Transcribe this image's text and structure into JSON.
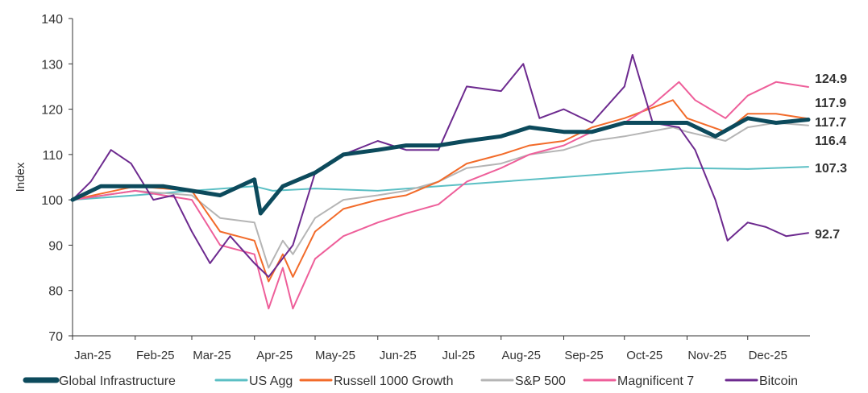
{
  "chart_data": {
    "type": "line",
    "title": "",
    "xlabel": "",
    "ylabel": "Index",
    "ylim": [
      70,
      140
    ],
    "yticks": [
      70,
      80,
      90,
      100,
      110,
      120,
      130,
      140
    ],
    "xlim": [
      "2025-01-01",
      "2025-12-31"
    ],
    "xticks": [
      {
        "date": "2025-01-01",
        "label": "Jan-25"
      },
      {
        "date": "2025-02-01",
        "label": "Feb-25"
      },
      {
        "date": "2025-03-01",
        "label": "Mar-25"
      },
      {
        "date": "2025-04-01",
        "label": "Apr-25"
      },
      {
        "date": "2025-05-01",
        "label": "May-25"
      },
      {
        "date": "2025-06-01",
        "label": "Jun-25"
      },
      {
        "date": "2025-07-01",
        "label": "Jul-25"
      },
      {
        "date": "2025-08-01",
        "label": "Aug-25"
      },
      {
        "date": "2025-09-01",
        "label": "Sep-25"
      },
      {
        "date": "2025-10-01",
        "label": "Oct-25"
      },
      {
        "date": "2025-11-01",
        "label": "Nov-25"
      },
      {
        "date": "2025-12-01",
        "label": "Dec-25"
      }
    ],
    "grid": false,
    "legend_placement": "bottom",
    "series": [
      {
        "name": "US Agg",
        "color": "#5bbfc4",
        "end_label": "107.3",
        "points": [
          [
            "2025-01-01",
            100
          ],
          [
            "2025-02-01",
            101
          ],
          [
            "2025-03-01",
            102
          ],
          [
            "2025-04-01",
            103
          ],
          [
            "2025-04-10",
            102
          ],
          [
            "2025-05-01",
            102.5
          ],
          [
            "2025-06-01",
            102
          ],
          [
            "2025-07-01",
            103
          ],
          [
            "2025-08-01",
            104
          ],
          [
            "2025-09-01",
            105
          ],
          [
            "2025-10-01",
            106
          ],
          [
            "2025-11-01",
            107
          ],
          [
            "2025-12-01",
            106.8
          ],
          [
            "2025-12-31",
            107.3
          ]
        ]
      },
      {
        "name": "S&P 500",
        "color": "#b5b5b5",
        "end_label": "116.4",
        "points": [
          [
            "2025-01-01",
            100
          ],
          [
            "2025-02-01",
            102
          ],
          [
            "2025-03-01",
            101
          ],
          [
            "2025-03-15",
            96
          ],
          [
            "2025-04-01",
            95
          ],
          [
            "2025-04-08",
            85
          ],
          [
            "2025-04-15",
            91
          ],
          [
            "2025-04-20",
            88
          ],
          [
            "2025-05-01",
            96
          ],
          [
            "2025-05-15",
            100
          ],
          [
            "2025-06-01",
            101
          ],
          [
            "2025-06-15",
            102
          ],
          [
            "2025-07-01",
            104
          ],
          [
            "2025-07-15",
            107
          ],
          [
            "2025-08-01",
            108
          ],
          [
            "2025-08-15",
            110
          ],
          [
            "2025-09-01",
            111
          ],
          [
            "2025-09-15",
            113
          ],
          [
            "2025-10-01",
            114
          ],
          [
            "2025-10-25",
            116
          ],
          [
            "2025-11-01",
            115
          ],
          [
            "2025-11-20",
            113
          ],
          [
            "2025-12-01",
            116
          ],
          [
            "2025-12-15",
            117
          ],
          [
            "2025-12-31",
            116.4
          ]
        ]
      },
      {
        "name": "Russell 1000 Growth",
        "color": "#f26b2a",
        "end_label": "117.9",
        "points": [
          [
            "2025-01-01",
            100
          ],
          [
            "2025-02-01",
            103
          ],
          [
            "2025-03-01",
            102
          ],
          [
            "2025-03-15",
            93
          ],
          [
            "2025-04-01",
            91
          ],
          [
            "2025-04-08",
            82
          ],
          [
            "2025-04-15",
            88
          ],
          [
            "2025-04-20",
            83
          ],
          [
            "2025-05-01",
            93
          ],
          [
            "2025-05-15",
            98
          ],
          [
            "2025-06-01",
            100
          ],
          [
            "2025-06-15",
            101
          ],
          [
            "2025-07-01",
            104
          ],
          [
            "2025-07-15",
            108
          ],
          [
            "2025-08-01",
            110
          ],
          [
            "2025-08-15",
            112
          ],
          [
            "2025-09-01",
            113
          ],
          [
            "2025-09-15",
            116
          ],
          [
            "2025-10-01",
            118
          ],
          [
            "2025-10-25",
            122
          ],
          [
            "2025-11-01",
            118
          ],
          [
            "2025-11-20",
            115
          ],
          [
            "2025-12-01",
            119
          ],
          [
            "2025-12-15",
            119
          ],
          [
            "2025-12-31",
            117.9
          ]
        ]
      },
      {
        "name": "Magnificent 7",
        "color": "#ee5f9a",
        "end_label": "124.9",
        "points": [
          [
            "2025-01-01",
            100
          ],
          [
            "2025-02-01",
            102
          ],
          [
            "2025-03-01",
            100
          ],
          [
            "2025-03-15",
            90
          ],
          [
            "2025-04-01",
            88
          ],
          [
            "2025-04-08",
            76
          ],
          [
            "2025-04-15",
            85
          ],
          [
            "2025-04-20",
            76
          ],
          [
            "2025-05-01",
            87
          ],
          [
            "2025-05-15",
            92
          ],
          [
            "2025-06-01",
            95
          ],
          [
            "2025-06-15",
            97
          ],
          [
            "2025-07-01",
            99
          ],
          [
            "2025-07-15",
            104
          ],
          [
            "2025-08-01",
            107
          ],
          [
            "2025-08-15",
            110
          ],
          [
            "2025-09-01",
            112
          ],
          [
            "2025-09-15",
            115
          ],
          [
            "2025-10-01",
            117
          ],
          [
            "2025-10-15",
            121
          ],
          [
            "2025-10-28",
            126
          ],
          [
            "2025-11-05",
            122
          ],
          [
            "2025-11-20",
            118
          ],
          [
            "2025-12-01",
            123
          ],
          [
            "2025-12-15",
            126
          ],
          [
            "2025-12-31",
            124.9
          ]
        ]
      },
      {
        "name": "Bitcoin",
        "color": "#6d2a8f",
        "end_label": "92.7",
        "points": [
          [
            "2025-01-01",
            100
          ],
          [
            "2025-01-10",
            104
          ],
          [
            "2025-01-20",
            111
          ],
          [
            "2025-01-30",
            108
          ],
          [
            "2025-02-10",
            100
          ],
          [
            "2025-02-20",
            101
          ],
          [
            "2025-03-01",
            93
          ],
          [
            "2025-03-10",
            86
          ],
          [
            "2025-03-20",
            92
          ],
          [
            "2025-04-01",
            86
          ],
          [
            "2025-04-08",
            83
          ],
          [
            "2025-04-20",
            90
          ],
          [
            "2025-05-01",
            106
          ],
          [
            "2025-05-15",
            110
          ],
          [
            "2025-06-01",
            113
          ],
          [
            "2025-06-15",
            111
          ],
          [
            "2025-07-01",
            111
          ],
          [
            "2025-07-15",
            125
          ],
          [
            "2025-08-01",
            124
          ],
          [
            "2025-08-12",
            130
          ],
          [
            "2025-08-20",
            118
          ],
          [
            "2025-09-01",
            120
          ],
          [
            "2025-09-15",
            117
          ],
          [
            "2025-10-01",
            125
          ],
          [
            "2025-10-05",
            132
          ],
          [
            "2025-10-15",
            117
          ],
          [
            "2025-10-28",
            116
          ],
          [
            "2025-11-05",
            111
          ],
          [
            "2025-11-15",
            100
          ],
          [
            "2025-11-21",
            91
          ],
          [
            "2025-12-01",
            95
          ],
          [
            "2025-12-10",
            94
          ],
          [
            "2025-12-20",
            92
          ],
          [
            "2025-12-31",
            92.7
          ]
        ]
      },
      {
        "name": "Global Infrastructure",
        "color": "#0c4a5c",
        "end_label": "117.7",
        "points": [
          [
            "2025-01-01",
            100
          ],
          [
            "2025-01-15",
            103
          ],
          [
            "2025-02-01",
            103
          ],
          [
            "2025-02-15",
            103
          ],
          [
            "2025-03-01",
            102
          ],
          [
            "2025-03-15",
            101
          ],
          [
            "2025-04-01",
            104.5
          ],
          [
            "2025-04-04",
            97
          ],
          [
            "2025-04-15",
            103
          ],
          [
            "2025-05-01",
            106
          ],
          [
            "2025-05-15",
            110
          ],
          [
            "2025-06-01",
            111
          ],
          [
            "2025-06-15",
            112
          ],
          [
            "2025-07-01",
            112
          ],
          [
            "2025-07-15",
            113
          ],
          [
            "2025-08-01",
            114
          ],
          [
            "2025-08-15",
            116
          ],
          [
            "2025-09-01",
            115
          ],
          [
            "2025-09-15",
            115
          ],
          [
            "2025-10-01",
            117
          ],
          [
            "2025-10-15",
            117
          ],
          [
            "2025-11-01",
            117
          ],
          [
            "2025-11-15",
            114
          ],
          [
            "2025-12-01",
            118
          ],
          [
            "2025-12-15",
            117
          ],
          [
            "2025-12-31",
            117.7
          ]
        ]
      }
    ],
    "legend_order": [
      "Global Infrastructure",
      "US Agg",
      "Russell 1000 Growth",
      "S&P 500",
      "Magnificent 7",
      "Bitcoin"
    ]
  }
}
